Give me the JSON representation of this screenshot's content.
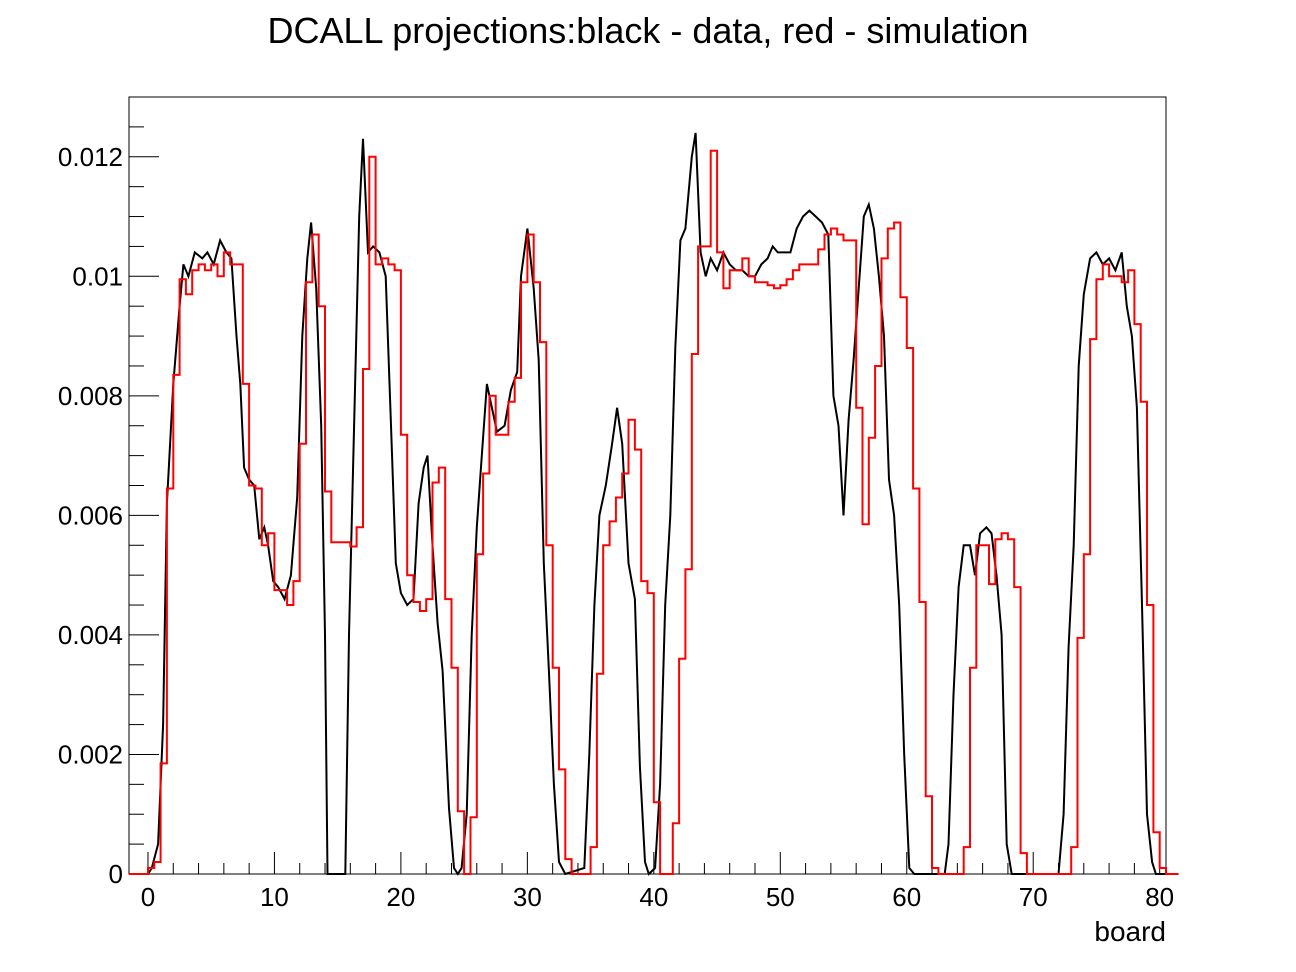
{
  "chart_data": {
    "type": "line",
    "title": "DCALL projections:black - data, red - simulation",
    "xlabel": "board",
    "ylabel": "",
    "xlim": [
      -1.5,
      80.5
    ],
    "ylim": [
      0,
      0.013
    ],
    "x_ticks": [
      "0",
      "10",
      "20",
      "30",
      "40",
      "50",
      "60",
      "70",
      "80"
    ],
    "y_ticks": [
      "0",
      "0.002",
      "0.004",
      "0.006",
      "0.008",
      "0.01",
      "0.012"
    ],
    "grid": false,
    "legend": "none",
    "series": [
      {
        "color": "#000000",
        "style": "polyline",
        "points": [
          [
            -1.5,
            0
          ],
          [
            0.0,
            0
          ],
          [
            0.3,
            0.0001
          ],
          [
            0.8,
            0.0005
          ],
          [
            1.2,
            0.0025
          ],
          [
            1.5,
            0.0062
          ],
          [
            2.0,
            0.0082
          ],
          [
            2.5,
            0.0095
          ],
          [
            2.8,
            0.0102
          ],
          [
            3.2,
            0.01
          ],
          [
            3.7,
            0.0104
          ],
          [
            4.3,
            0.0103
          ],
          [
            4.7,
            0.0104
          ],
          [
            5.2,
            0.0102
          ],
          [
            5.7,
            0.0106
          ],
          [
            6.2,
            0.0104
          ],
          [
            6.6,
            0.0103
          ],
          [
            7.0,
            0.009
          ],
          [
            7.3,
            0.0082
          ],
          [
            7.6,
            0.0068
          ],
          [
            8.0,
            0.0066
          ],
          [
            8.4,
            0.0065
          ],
          [
            8.8,
            0.0056
          ],
          [
            9.2,
            0.0058
          ],
          [
            9.5,
            0.0055
          ],
          [
            9.9,
            0.0049
          ],
          [
            10.3,
            0.0048
          ],
          [
            10.8,
            0.0046
          ],
          [
            11.3,
            0.005
          ],
          [
            11.8,
            0.0063
          ],
          [
            12.2,
            0.009
          ],
          [
            12.6,
            0.0103
          ],
          [
            12.9,
            0.0109
          ],
          [
            13.3,
            0.0098
          ],
          [
            13.7,
            0.0075
          ],
          [
            14.0,
            0.004
          ],
          [
            14.2,
            0
          ],
          [
            15.6,
            0
          ],
          [
            15.9,
            0.004
          ],
          [
            16.3,
            0.0075
          ],
          [
            16.7,
            0.011
          ],
          [
            17.0,
            0.0123
          ],
          [
            17.4,
            0.0104
          ],
          [
            17.8,
            0.0105
          ],
          [
            18.3,
            0.0104
          ],
          [
            18.8,
            0.01
          ],
          [
            19.2,
            0.0076
          ],
          [
            19.6,
            0.0052
          ],
          [
            20.0,
            0.0047
          ],
          [
            20.5,
            0.0045
          ],
          [
            21.0,
            0.0046
          ],
          [
            21.4,
            0.0062
          ],
          [
            21.8,
            0.0068
          ],
          [
            22.1,
            0.007
          ],
          [
            22.5,
            0.0055
          ],
          [
            22.9,
            0.0042
          ],
          [
            23.3,
            0.0034
          ],
          [
            23.8,
            0.0011
          ],
          [
            24.2,
            0.0001
          ],
          [
            24.5,
            0
          ],
          [
            24.8,
            0.0001
          ],
          [
            25.2,
            0.001
          ],
          [
            25.6,
            0.004
          ],
          [
            26.0,
            0.0058
          ],
          [
            26.4,
            0.007
          ],
          [
            26.8,
            0.0082
          ],
          [
            27.2,
            0.0078
          ],
          [
            27.6,
            0.0074
          ],
          [
            28.2,
            0.0075
          ],
          [
            28.7,
            0.0081
          ],
          [
            29.2,
            0.0084
          ],
          [
            29.5,
            0.01
          ],
          [
            30.0,
            0.0108
          ],
          [
            30.5,
            0.0098
          ],
          [
            30.9,
            0.0086
          ],
          [
            31.3,
            0.0052
          ],
          [
            31.7,
            0.0034
          ],
          [
            32.1,
            0.0015
          ],
          [
            32.5,
            0.0002
          ],
          [
            33.0,
            0
          ],
          [
            34.5,
            0.0001
          ],
          [
            34.9,
            0.002
          ],
          [
            35.3,
            0.0045
          ],
          [
            35.7,
            0.006
          ],
          [
            36.2,
            0.0065
          ],
          [
            36.7,
            0.0072
          ],
          [
            37.1,
            0.0078
          ],
          [
            37.5,
            0.0072
          ],
          [
            38.0,
            0.0052
          ],
          [
            38.5,
            0.0046
          ],
          [
            38.9,
            0.0018
          ],
          [
            39.3,
            0.0002
          ],
          [
            39.6,
            0
          ],
          [
            40.1,
            0.0001
          ],
          [
            40.5,
            0.0015
          ],
          [
            40.9,
            0.0045
          ],
          [
            41.3,
            0.006
          ],
          [
            41.7,
            0.0088
          ],
          [
            42.1,
            0.0106
          ],
          [
            42.5,
            0.0108
          ],
          [
            43.0,
            0.012
          ],
          [
            43.3,
            0.0124
          ],
          [
            43.7,
            0.0104
          ],
          [
            44.1,
            0.01
          ],
          [
            44.5,
            0.0103
          ],
          [
            45.0,
            0.0101
          ],
          [
            45.5,
            0.0104
          ],
          [
            46.0,
            0.0102
          ],
          [
            46.5,
            0.0101
          ],
          [
            47.0,
            0.0101
          ],
          [
            47.5,
            0.01
          ],
          [
            48.0,
            0.01
          ],
          [
            48.5,
            0.0102
          ],
          [
            49.0,
            0.0103
          ],
          [
            49.4,
            0.0105
          ],
          [
            49.8,
            0.0104
          ],
          [
            50.3,
            0.0104
          ],
          [
            50.8,
            0.0104
          ],
          [
            51.3,
            0.0108
          ],
          [
            51.8,
            0.011
          ],
          [
            52.3,
            0.0111
          ],
          [
            52.8,
            0.011
          ],
          [
            53.3,
            0.0109
          ],
          [
            53.8,
            0.0107
          ],
          [
            54.2,
            0.008
          ],
          [
            54.6,
            0.0075
          ],
          [
            55.0,
            0.006
          ],
          [
            55.4,
            0.0076
          ],
          [
            55.8,
            0.0086
          ],
          [
            56.2,
            0.0098
          ],
          [
            56.6,
            0.011
          ],
          [
            57.0,
            0.0112
          ],
          [
            57.4,
            0.0108
          ],
          [
            57.8,
            0.01
          ],
          [
            58.2,
            0.009
          ],
          [
            58.6,
            0.0066
          ],
          [
            59.0,
            0.006
          ],
          [
            59.4,
            0.0045
          ],
          [
            59.8,
            0.002
          ],
          [
            60.2,
            0.0001
          ],
          [
            60.6,
            0
          ],
          [
            63.0,
            0
          ],
          [
            63.3,
            0.0005
          ],
          [
            63.7,
            0.003
          ],
          [
            64.1,
            0.0048
          ],
          [
            64.5,
            0.0055
          ],
          [
            65.0,
            0.0055
          ],
          [
            65.4,
            0.005
          ],
          [
            65.8,
            0.0057
          ],
          [
            66.3,
            0.0058
          ],
          [
            66.7,
            0.0057
          ],
          [
            67.1,
            0.005
          ],
          [
            67.5,
            0.004
          ],
          [
            67.9,
            0.0005
          ],
          [
            68.3,
            0
          ],
          [
            72.0,
            0
          ],
          [
            72.4,
            0.001
          ],
          [
            72.8,
            0.0038
          ],
          [
            73.2,
            0.0055
          ],
          [
            73.6,
            0.0085
          ],
          [
            74.0,
            0.0097
          ],
          [
            74.5,
            0.0103
          ],
          [
            75.0,
            0.0104
          ],
          [
            75.5,
            0.0102
          ],
          [
            76.0,
            0.0103
          ],
          [
            76.5,
            0.0101
          ],
          [
            77.0,
            0.0104
          ],
          [
            77.4,
            0.0095
          ],
          [
            77.8,
            0.009
          ],
          [
            78.2,
            0.0078
          ],
          [
            78.6,
            0.0045
          ],
          [
            79.0,
            0.001
          ],
          [
            79.4,
            0.0002
          ],
          [
            79.7,
            0
          ],
          [
            80.5,
            0
          ]
        ]
      },
      {
        "color": "#ff0000",
        "style": "step",
        "step_width": 0.5,
        "x_start": -1.5,
        "values": [
          0,
          0,
          0,
          0.0001,
          0.0002,
          0.00185,
          0.00645,
          0.00835,
          0.00995,
          0.0097,
          0.0101,
          0.0102,
          0.0101,
          0.0102,
          0.01,
          0.0104,
          0.0102,
          0.0102,
          0.0082,
          0.0065,
          0.00645,
          0.0055,
          0.0057,
          0.00475,
          0.00475,
          0.0045,
          0.0049,
          0.0072,
          0.0099,
          0.0107,
          0.0095,
          0.0064,
          0.00555,
          0.00555,
          0.00555,
          0.00548,
          0.0058,
          0.00845,
          0.012,
          0.0102,
          0.0103,
          0.0102,
          0.0101,
          0.00735,
          0.005,
          0.00455,
          0.0044,
          0.0046,
          0.00655,
          0.0068,
          0.0046,
          0.00345,
          0.00105,
          0,
          0.00095,
          0.00535,
          0.0067,
          0.008,
          0.00735,
          0.00735,
          0.0079,
          0.0083,
          0.0099,
          0.0107,
          0.0099,
          0.0089,
          0.0055,
          0.00345,
          0.00175,
          0.00025,
          0,
          0,
          0,
          0.00045,
          0.00335,
          0.0055,
          0.0059,
          0.0063,
          0.0067,
          0.0076,
          0.0071,
          0.0049,
          0.0047,
          0.0012,
          0,
          0,
          0.00085,
          0.0036,
          0.0051,
          0.0087,
          0.0105,
          0.0105,
          0.0121,
          0.0104,
          0.0098,
          0.0101,
          0.0101,
          0.0103,
          0.01,
          0.0099,
          0.0099,
          0.00985,
          0.0098,
          0.00985,
          0.00995,
          0.0101,
          0.0102,
          0.0102,
          0.0102,
          0.01045,
          0.0107,
          0.0108,
          0.0107,
          0.0106,
          0.0106,
          0.0078,
          0.00585,
          0.0073,
          0.0085,
          0.0103,
          0.0108,
          0.0109,
          0.00965,
          0.0088,
          0.00645,
          0.00455,
          0.0013,
          0.0001,
          0,
          0,
          0,
          0,
          0.00045,
          0.00345,
          0.0055,
          0.0055,
          0.00485,
          0.0056,
          0.0057,
          0.0056,
          0.0048,
          0.00035,
          0,
          0,
          0,
          0,
          0,
          0,
          0,
          0.00045,
          0.00395,
          0.00535,
          0.00895,
          0.00995,
          0.0102,
          0.01,
          0.01,
          0.0099,
          0.0101,
          0.0092,
          0.0079,
          0.0045,
          0.0007,
          0.0001,
          0,
          0
        ]
      }
    ]
  }
}
